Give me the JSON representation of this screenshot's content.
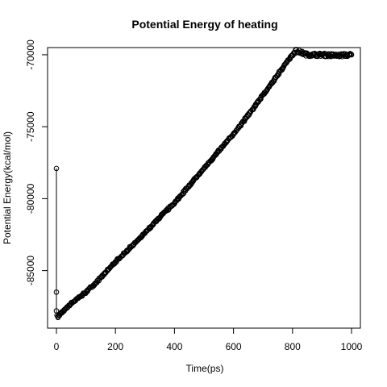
{
  "chart_data": {
    "type": "scatter",
    "title": "Potential Energy of heating",
    "xlabel": "Time(ps)",
    "ylabel": "Potential Energy(kcal/mol)",
    "xlim": [
      -30,
      1030
    ],
    "ylim": [
      -89000,
      -69500
    ],
    "x_ticks": [
      0,
      200,
      400,
      600,
      800,
      1000
    ],
    "x_tick_labels": [
      "0",
      "200",
      "400",
      "600",
      "800",
      "1000"
    ],
    "y_ticks": [
      -85000,
      -80000,
      -75000,
      -70000
    ],
    "y_tick_labels": [
      "-85000",
      "-80000",
      "-75000",
      "-70000"
    ],
    "grid": false,
    "legend": "none",
    "connected_lines": "initial points only",
    "series": [
      {
        "marker": "open-circle",
        "color": "#000000",
        "points": [
          [
            0,
            -77900
          ],
          [
            0,
            -86500
          ],
          [
            0,
            -87800
          ],
          [
            2,
            -88100
          ],
          [
            4,
            -88200
          ],
          [
            50,
            -87300
          ],
          [
            100,
            -86500
          ],
          [
            150,
            -85500
          ],
          [
            200,
            -84400
          ],
          [
            250,
            -83400
          ],
          [
            300,
            -82400
          ],
          [
            350,
            -81300
          ],
          [
            400,
            -80300
          ],
          [
            450,
            -79100
          ],
          [
            500,
            -77900
          ],
          [
            550,
            -76700
          ],
          [
            600,
            -75500
          ],
          [
            650,
            -74200
          ],
          [
            700,
            -72800
          ],
          [
            750,
            -71400
          ],
          [
            780,
            -70500
          ],
          [
            800,
            -70000
          ],
          [
            810,
            -69700
          ],
          [
            850,
            -70000
          ],
          [
            900,
            -70000
          ],
          [
            950,
            -70050
          ],
          [
            1000,
            -70000
          ]
        ]
      }
    ]
  }
}
